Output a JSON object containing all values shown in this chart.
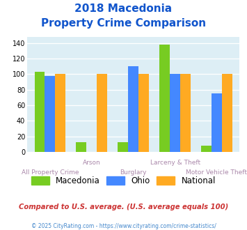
{
  "title_line1": "2018 Macedonia",
  "title_line2": "Property Crime Comparison",
  "categories": [
    "All Property Crime",
    "Arson",
    "Burglary",
    "Larceny & Theft",
    "Motor Vehicle Theft"
  ],
  "macedonia": [
    103,
    12,
    12,
    138,
    8
  ],
  "ohio": [
    98,
    0,
    110,
    100,
    75
  ],
  "national": [
    100,
    100,
    100,
    100,
    100
  ],
  "macedonia_color": "#77cc22",
  "ohio_color": "#4488ff",
  "national_color": "#ffaa22",
  "title_color": "#1155cc",
  "xlabel_color": "#aa88aa",
  "ylabel_values": [
    0,
    20,
    40,
    60,
    80,
    100,
    120,
    140
  ],
  "ylim": [
    0,
    148
  ],
  "legend_labels": [
    "Macedonia",
    "Ohio",
    "National"
  ],
  "footnote1": "Compared to U.S. average. (U.S. average equals 100)",
  "footnote2": "© 2025 CityRating.com - https://www.cityrating.com/crime-statistics/",
  "footnote1_color": "#cc3333",
  "footnote2_color": "#4488cc",
  "bg_color": "#ddeef5",
  "bar_width": 0.25
}
